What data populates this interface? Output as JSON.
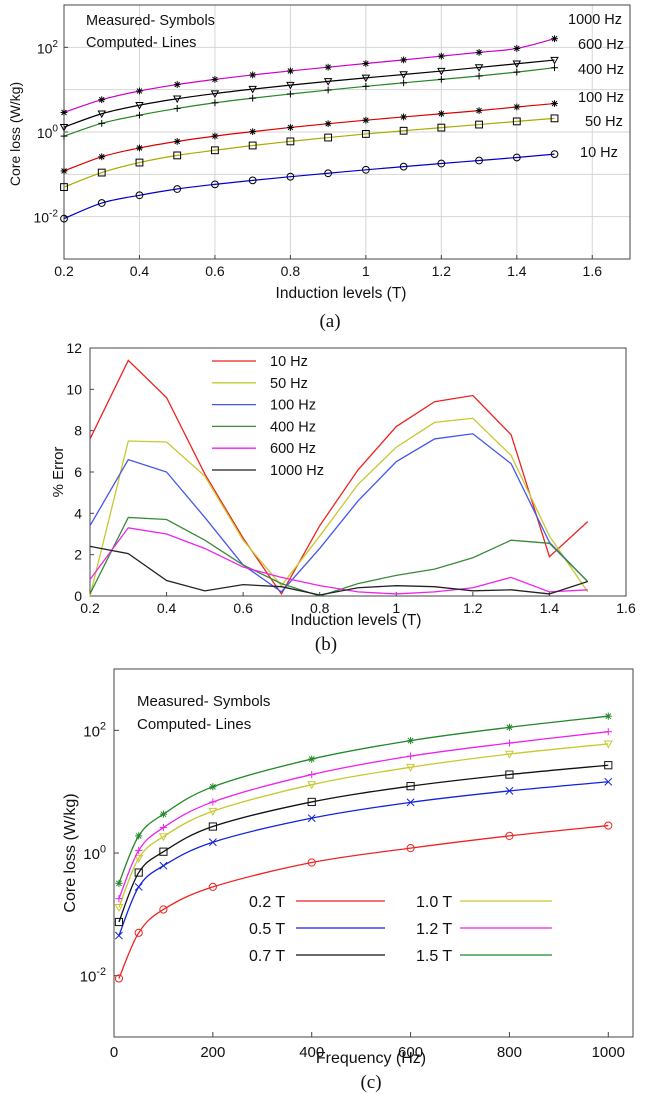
{
  "chart_data": [
    {
      "id": "a",
      "type": "line",
      "caption": "(a)",
      "xlabel": "Induction levels (T)",
      "ylabel": "Core loss (W/kg)",
      "xlim": [
        0.2,
        1.7
      ],
      "ylim_log10": [
        -3,
        3
      ],
      "y_scale": "log",
      "grid": true,
      "xticks": [
        "0.2",
        "0.4",
        "0.6",
        "0.8",
        "1",
        "1.2",
        "1.4",
        "1.6"
      ],
      "yticks": [
        {
          "base": "10",
          "exp": "-2"
        },
        {
          "base": "10",
          "exp": "0"
        },
        {
          "base": "10",
          "exp": "2"
        }
      ],
      "annotations": [
        "Measured- Symbols",
        "Computed- Lines"
      ],
      "x": [
        0.2,
        0.3,
        0.4,
        0.5,
        0.6,
        0.7,
        0.8,
        0.9,
        1.0,
        1.1,
        1.2,
        1.3,
        1.4,
        1.5
      ],
      "series": [
        {
          "name": "10 Hz",
          "color": "#0000cc",
          "marker": "circle",
          "values": [
            0.009,
            0.021,
            0.032,
            0.045,
            0.058,
            0.072,
            0.088,
            0.106,
            0.128,
            0.152,
            0.18,
            0.212,
            0.25,
            0.3
          ]
        },
        {
          "name": "50 Hz",
          "color": "#aaaa00",
          "marker": "square",
          "values": [
            0.05,
            0.11,
            0.19,
            0.28,
            0.37,
            0.48,
            0.6,
            0.74,
            0.9,
            1.07,
            1.27,
            1.5,
            1.78,
            2.1
          ]
        },
        {
          "name": "100 Hz",
          "color": "#dd0000",
          "marker": "asterisk",
          "values": [
            0.12,
            0.26,
            0.42,
            0.6,
            0.8,
            1.02,
            1.28,
            1.57,
            1.9,
            2.27,
            2.7,
            3.2,
            3.9,
            4.7
          ]
        },
        {
          "name": "400 Hz",
          "color": "#228822",
          "marker": "plus",
          "values": [
            0.8,
            1.6,
            2.5,
            3.6,
            4.9,
            6.3,
            7.9,
            9.8,
            12,
            14.5,
            17.5,
            21,
            26,
            33
          ]
        },
        {
          "name": "600 Hz",
          "color": "#000000",
          "marker": "triangle-down",
          "values": [
            1.3,
            2.7,
            4.3,
            6.1,
            8.1,
            10.3,
            12.8,
            15.7,
            19,
            22.8,
            27.5,
            33.5,
            41,
            50
          ]
        },
        {
          "name": "1000 Hz",
          "color": "#cc00cc",
          "marker": "asterisk",
          "values": [
            2.9,
            5.8,
            9.3,
            13.2,
            17.5,
            22.3,
            27.7,
            34,
            41.5,
            50.5,
            62,
            76,
            94,
            160
          ]
        }
      ]
    },
    {
      "id": "b",
      "type": "line",
      "caption": "(b)",
      "xlabel": "Induction levels (T)",
      "ylabel": "% Error",
      "xlim": [
        0.2,
        1.6
      ],
      "ylim": [
        0,
        12
      ],
      "grid": false,
      "legend_position": "top-left",
      "xticks": [
        "0.2",
        "0.4",
        "0.6",
        "0.8",
        "1",
        "1.2",
        "1.4",
        "1.6"
      ],
      "yticks": [
        "0",
        "2",
        "4",
        "6",
        "8",
        "10",
        "12"
      ],
      "x": [
        0.2,
        0.3,
        0.4,
        0.5,
        0.6,
        0.7,
        0.8,
        0.9,
        1.0,
        1.1,
        1.2,
        1.3,
        1.4,
        1.5
      ],
      "series": [
        {
          "name": "10 Hz",
          "color": "#ee2222",
          "values": [
            7.6,
            11.4,
            9.6,
            5.9,
            2.8,
            0.1,
            3.4,
            6.1,
            8.2,
            9.4,
            9.7,
            7.8,
            1.9,
            3.6
          ]
        },
        {
          "name": "50 Hz",
          "color": "#c8c830",
          "values": [
            0.0,
            7.5,
            7.45,
            5.8,
            2.7,
            0.5,
            2.9,
            5.4,
            7.2,
            8.4,
            8.6,
            6.8,
            2.9,
            0.2
          ]
        },
        {
          "name": "100 Hz",
          "color": "#4455ee",
          "values": [
            3.4,
            6.6,
            6.0,
            3.8,
            1.5,
            0.2,
            2.3,
            4.6,
            6.5,
            7.6,
            7.85,
            6.4,
            2.6,
            0.7
          ]
        },
        {
          "name": "400 Hz",
          "color": "#3a8a3a",
          "values": [
            0.1,
            3.8,
            3.7,
            2.7,
            1.5,
            0.6,
            0.0,
            0.6,
            1.0,
            1.3,
            1.85,
            2.7,
            2.55,
            0.7
          ]
        },
        {
          "name": "600 Hz",
          "color": "#ee22ee",
          "values": [
            0.8,
            3.3,
            3.0,
            2.3,
            1.4,
            0.9,
            0.5,
            0.2,
            0.1,
            0.2,
            0.4,
            0.9,
            0.2,
            0.3
          ]
        },
        {
          "name": "1000 Hz",
          "color": "#222222",
          "values": [
            2.4,
            2.05,
            0.75,
            0.25,
            0.55,
            0.45,
            0.05,
            0.4,
            0.5,
            0.45,
            0.25,
            0.3,
            0.1,
            0.7
          ]
        }
      ]
    },
    {
      "id": "c",
      "type": "line",
      "caption": "(c)",
      "xlabel": "Frequency (Hz)",
      "ylabel": "Core loss (W/kg)",
      "xlim": [
        0,
        1050
      ],
      "ylim_log10": [
        -3,
        3
      ],
      "y_scale": "log",
      "grid": false,
      "xticks": [
        "0",
        "200",
        "400",
        "600",
        "800",
        "1000"
      ],
      "yticks": [
        {
          "base": "10",
          "exp": "-2"
        },
        {
          "base": "10",
          "exp": "0"
        },
        {
          "base": "10",
          "exp": "2"
        }
      ],
      "annotations": [
        "Measured- Symbols",
        "Computed- Lines"
      ],
      "x": [
        10,
        50,
        100,
        200,
        400,
        600,
        800,
        1000
      ],
      "series": [
        {
          "name": "0.2 T",
          "color": "#ee2222",
          "marker": "circle",
          "values": [
            0.009,
            0.05,
            0.12,
            0.28,
            0.7,
            1.2,
            1.9,
            2.8
          ]
        },
        {
          "name": "0.5 T",
          "color": "#1122dd",
          "marker": "x",
          "values": [
            0.045,
            0.28,
            0.62,
            1.5,
            3.7,
            6.7,
            10.3,
            14.5
          ]
        },
        {
          "name": "0.7 T",
          "color": "#111111",
          "marker": "square",
          "values": [
            0.075,
            0.48,
            1.05,
            2.7,
            6.8,
            12.3,
            19,
            27
          ]
        },
        {
          "name": "1.0 T",
          "color": "#c8c830",
          "marker": "triangle-down",
          "values": [
            0.13,
            0.82,
            1.85,
            4.8,
            13,
            25,
            41,
            60
          ]
        },
        {
          "name": "1.2 T",
          "color": "#ee22ee",
          "marker": "plus",
          "values": [
            0.18,
            1.1,
            2.6,
            6.8,
            19,
            38,
            62,
            95
          ]
        },
        {
          "name": "1.5 T",
          "color": "#22882a",
          "marker": "asterisk",
          "values": [
            0.32,
            1.9,
            4.3,
            12,
            34,
            68,
            112,
            170
          ]
        }
      ]
    }
  ]
}
